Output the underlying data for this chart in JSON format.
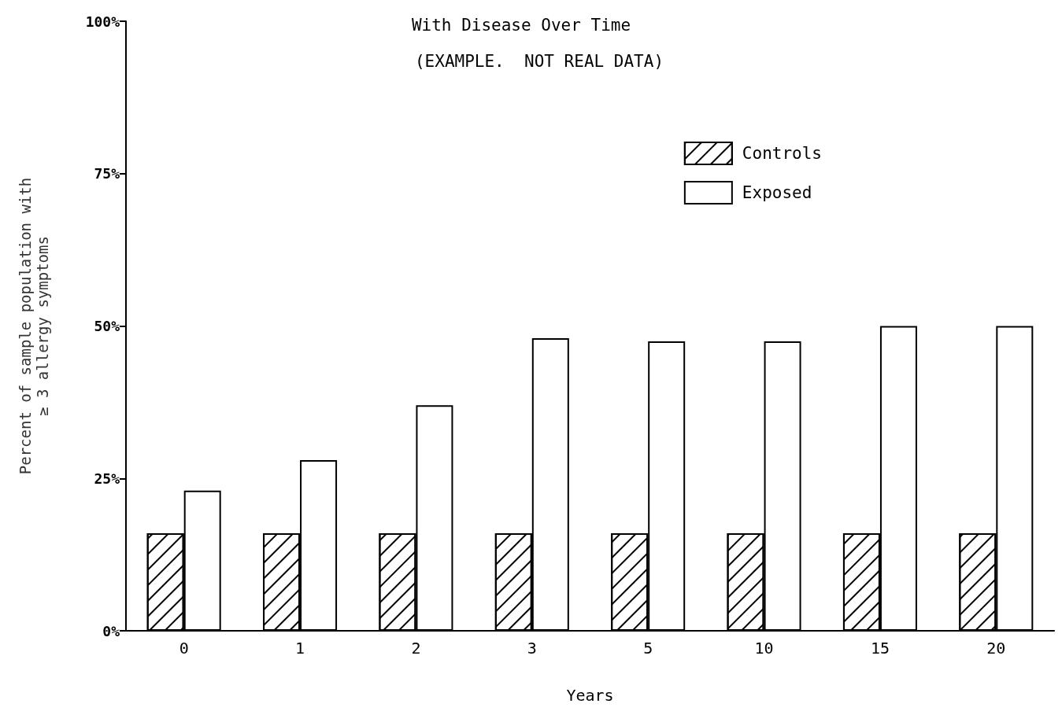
{
  "chart_data": {
    "type": "bar",
    "title": "With Disease Over Time",
    "subtitle": "(EXAMPLE.  NOT REAL DATA)",
    "xlabel": "Years",
    "ylabel": "Percent of sample population with\n≥ 3 allergy symptoms",
    "categories": [
      "0",
      "1",
      "2",
      "3",
      "5",
      "10",
      "15",
      "20"
    ],
    "series": [
      {
        "name": "Controls",
        "color": "#ffffff",
        "values": [
          16,
          16,
          16,
          16,
          16,
          16,
          16,
          16
        ]
      },
      {
        "name": "Exposed",
        "color": "#ffffff",
        "values": [
          23,
          28,
          37,
          48,
          47.5,
          47.5,
          50,
          50
        ]
      }
    ],
    "ylim": [
      0,
      100
    ],
    "yticks": [
      {
        "value": 0,
        "label": "0%"
      },
      {
        "value": 25,
        "label": "25%"
      },
      {
        "value": 50,
        "label": "50%"
      },
      {
        "value": 75,
        "label": "75%"
      },
      {
        "value": 100,
        "label": "100%"
      }
    ],
    "grid": false,
    "legend": "top right"
  }
}
